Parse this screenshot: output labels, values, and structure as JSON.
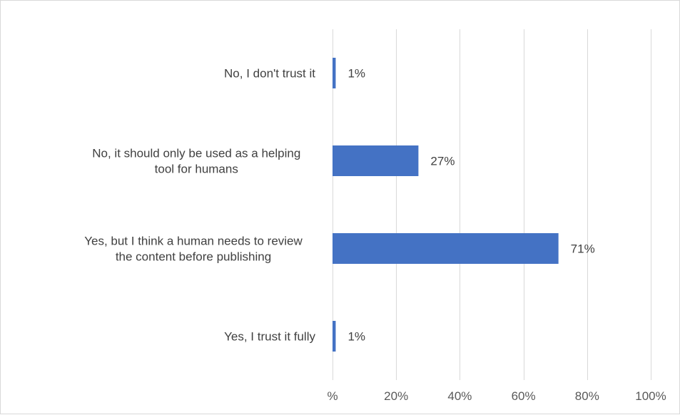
{
  "chart_data": {
    "type": "bar",
    "orientation": "horizontal",
    "categories": [
      "No, I don't trust it",
      "No, it should only be used as a helping tool for humans",
      "Yes, but I think a human needs to review the content before publishing",
      "Yes, I trust it fully"
    ],
    "category_lines": [
      [
        "No, I don't trust it"
      ],
      [
        "No, it should only be used as a helping",
        "tool for humans"
      ],
      [
        "Yes, but I think a human needs to review",
        "the content before publishing"
      ],
      [
        "Yes, I trust it fully"
      ]
    ],
    "values": [
      1,
      27,
      71,
      1
    ],
    "data_labels": [
      "1%",
      "27%",
      "71%",
      "1%"
    ],
    "xlim": [
      0,
      100
    ],
    "x_ticks": [
      0,
      20,
      40,
      60,
      80,
      100
    ],
    "x_tick_labels": [
      "%",
      "20%",
      "40%",
      "60%",
      "80%",
      "100%"
    ],
    "grid": "vertical",
    "legend": "none",
    "bar_color": "#4472C4"
  }
}
